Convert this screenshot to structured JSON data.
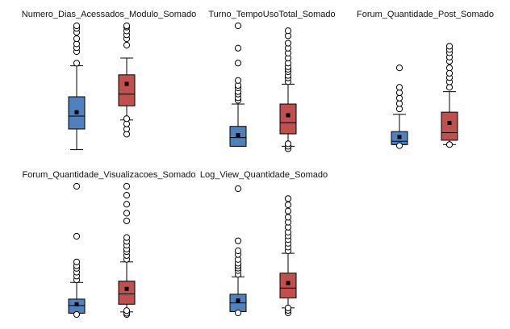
{
  "colors": {
    "box_a": "#4f81bd",
    "box_b": "#c0504d",
    "line": "#000000",
    "outlier_fill": "#ffffff"
  },
  "chart_data": [
    {
      "type": "boxplot",
      "title": "Numero_Dias_Acessados_Modulo_Somado",
      "ylim": [
        0,
        100
      ],
      "grid": false,
      "boxes": [
        {
          "color": "box_a",
          "whisker_low": 4,
          "q1": 20,
          "median": 30,
          "mean": 33,
          "q3": 45,
          "whisker_high": 69,
          "outliers": [
            71,
            80,
            83,
            86,
            90,
            95,
            98,
            100
          ]
        },
        {
          "color": "box_b",
          "whisker_low": 27,
          "q1": 38,
          "median": 47,
          "mean": 55,
          "q3": 62,
          "whisker_high": 75,
          "outliers": [
            16,
            20,
            24,
            28,
            85,
            90,
            93,
            96,
            99,
            100
          ]
        }
      ]
    },
    {
      "type": "boxplot",
      "title": "Turno_TempoUsoTotal_Somado",
      "ylim": [
        0,
        100
      ],
      "grid": false,
      "boxes": [
        {
          "color": "box_a",
          "whisker_low": 3,
          "q1": 3,
          "median": 10,
          "mean": 12,
          "q3": 19,
          "whisker_high": 37,
          "outliers": [
            40,
            42,
            45,
            47,
            50,
            52,
            56,
            70,
            82,
            100
          ]
        },
        {
          "color": "box_b",
          "whisker_low": 3,
          "q1": 13,
          "median": 22,
          "mean": 28,
          "q3": 37,
          "whisker_high": 53,
          "outliers": [
            1,
            3,
            5,
            55,
            58,
            60,
            63,
            65,
            67,
            70,
            74,
            78,
            82,
            86,
            92,
            96
          ]
        }
      ]
    },
    {
      "type": "boxplot",
      "title": "Forum_Quantidade_Post_Somado",
      "ylim": [
        0,
        100
      ],
      "grid": false,
      "boxes": [
        {
          "color": "box_a",
          "whisker_low": 5,
          "q1": 5,
          "median": 8,
          "mean": 12,
          "q3": 17,
          "whisker_high": 33,
          "outliers": [
            4,
            38,
            43,
            48,
            53,
            58,
            76
          ]
        },
        {
          "color": "box_b",
          "whisker_low": 5,
          "q1": 9,
          "median": 16,
          "mean": 25,
          "q3": 35,
          "whisker_high": 54,
          "outliers": [
            5,
            58,
            63,
            67,
            71,
            76,
            82,
            86,
            90,
            93,
            96
          ]
        }
      ]
    },
    {
      "type": "boxplot",
      "title": "Forum_Quantidade_Visualizacoes_Somado",
      "ylim": [
        0,
        100
      ],
      "grid": false,
      "boxes": [
        {
          "color": "box_a",
          "whisker_low": 1,
          "q1": 1,
          "median": 7,
          "mean": 8,
          "q3": 12,
          "whisker_high": 25,
          "outliers": [
            0,
            27,
            30,
            33,
            36,
            38,
            41,
            61,
            100
          ]
        },
        {
          "color": "box_b",
          "whisker_low": 2,
          "q1": 8,
          "median": 16,
          "mean": 20,
          "q3": 26,
          "whisker_high": 41,
          "outliers": [
            0,
            1,
            3,
            43,
            46,
            49,
            51,
            54,
            57,
            60,
            73,
            79,
            86,
            93,
            100
          ]
        }
      ]
    },
    {
      "type": "boxplot",
      "title": "Log_View_Quantidade_Somado",
      "ylim": [
        0,
        100
      ],
      "grid": false,
      "boxes": [
        {
          "color": "box_a",
          "whisker_low": 1,
          "q1": 1,
          "median": 8,
          "mean": 10,
          "q3": 15,
          "whisker_high": 29,
          "outliers": [
            0,
            31,
            34,
            36,
            38,
            40,
            43,
            47,
            50,
            58,
            100
          ]
        },
        {
          "color": "box_b",
          "whisker_low": 4,
          "q1": 12,
          "median": 20,
          "mean": 24,
          "q3": 32,
          "whisker_high": 48,
          "outliers": [
            0,
            2,
            4,
            50,
            53,
            56,
            59,
            62,
            65,
            69,
            73,
            77,
            82,
            87,
            92
          ]
        }
      ]
    }
  ]
}
